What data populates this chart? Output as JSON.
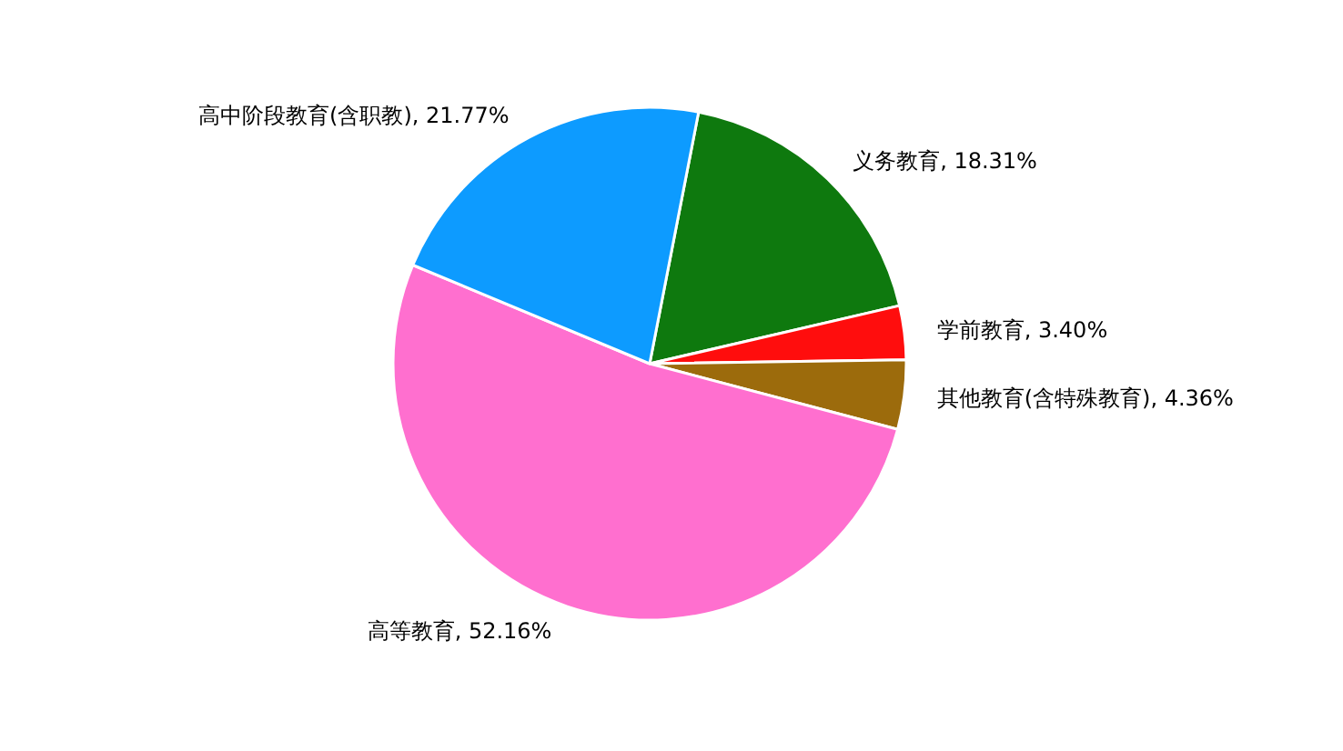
{
  "chart_data": {
    "type": "pie",
    "categories": [
      "义务教育",
      "学前教育",
      "其他教育(含特殊教育)",
      "高等教育",
      "高中阶段教育(含职教)"
    ],
    "values": [
      18.31,
      3.4,
      4.36,
      52.16,
      21.77
    ],
    "colors": [
      "#0e790e",
      "#ff0d0d",
      "#9c6b0c",
      "#ff6fcf",
      "#0d9bff"
    ],
    "value_labels": [
      "18.31%",
      "3.40%",
      "4.36%",
      "52.16%",
      "21.77%"
    ]
  }
}
